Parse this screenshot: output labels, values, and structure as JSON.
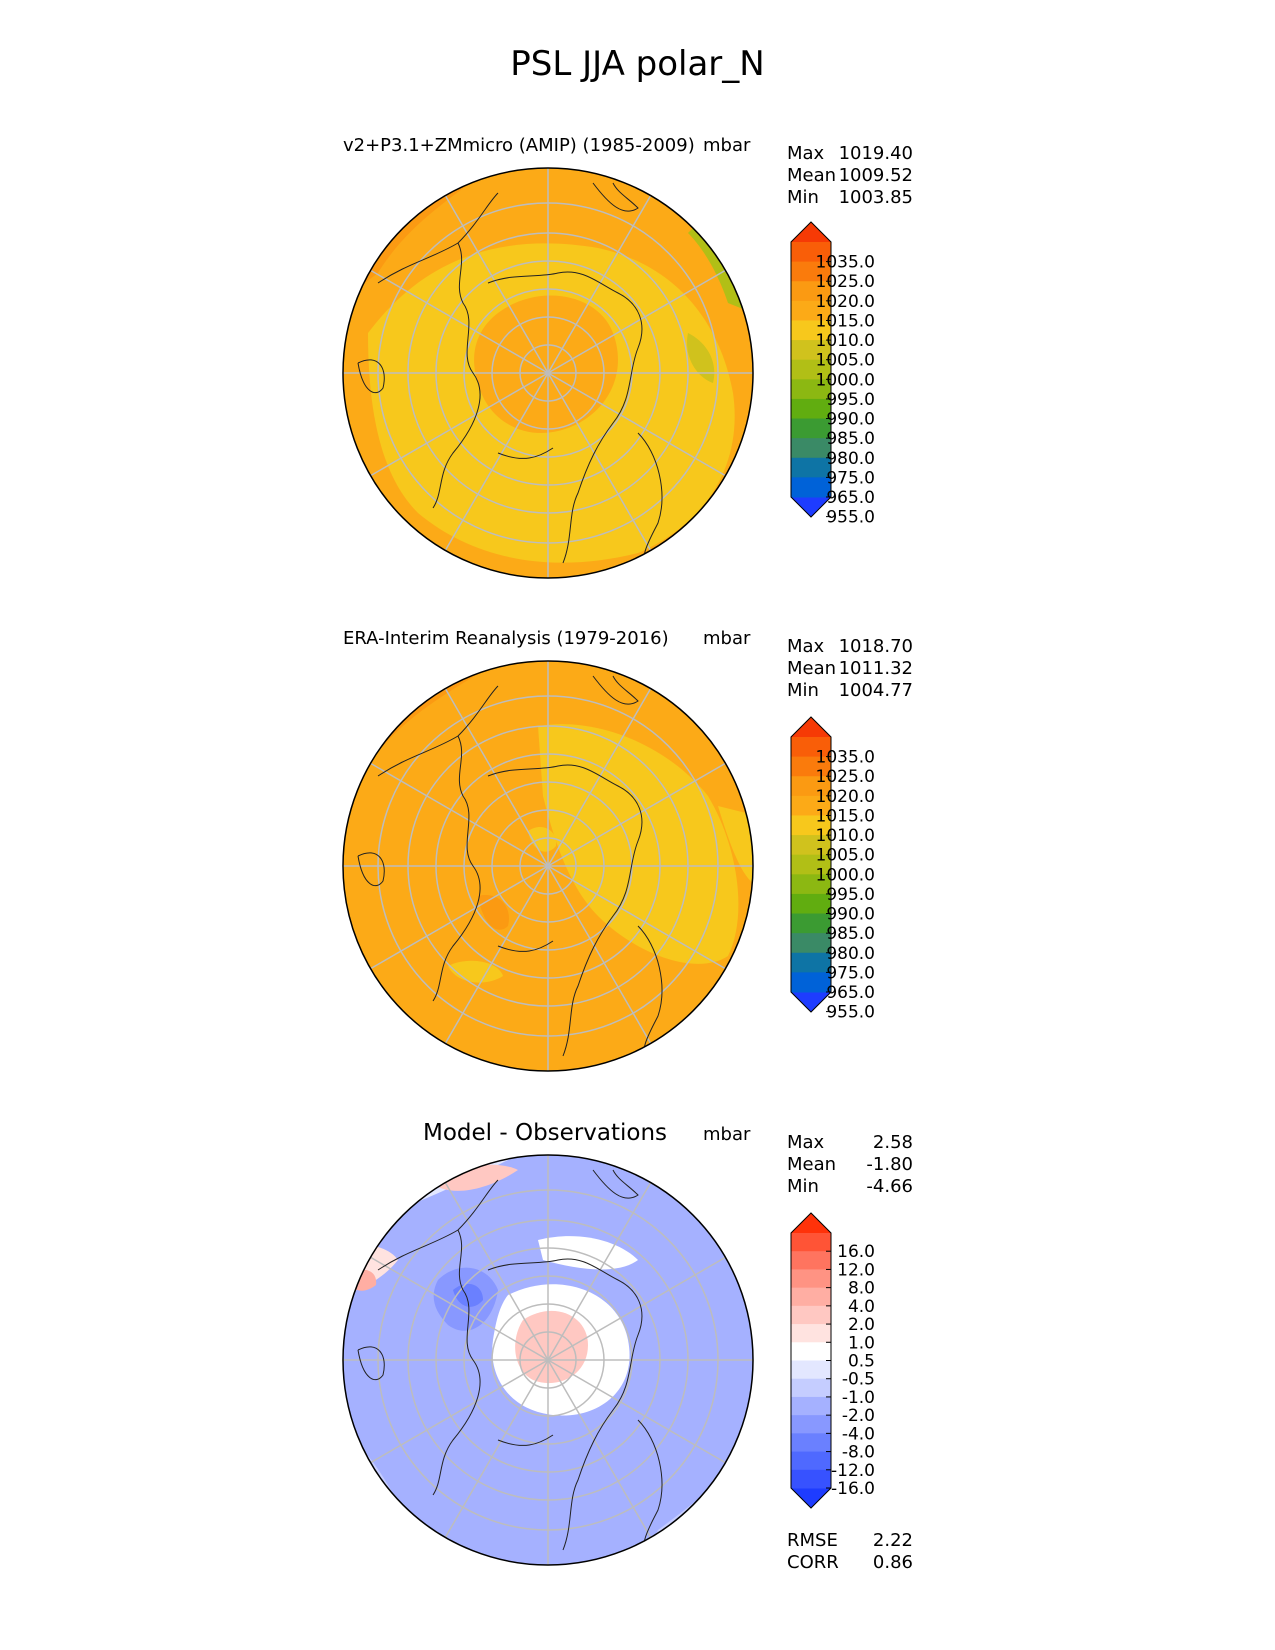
{
  "title": "PSL JJA polar_N",
  "colors": {
    "abs": [
      "#1e3cff",
      "#0062d8",
      "#0e74a5",
      "#3a8a66",
      "#3b9b32",
      "#61ad10",
      "#8cb812",
      "#b1bf16",
      "#d0c21d",
      "#f7c81c",
      "#fcaa17",
      "#fb9a12",
      "#fa7b0c",
      "#f95e08",
      "#f63a05"
    ],
    "diff": [
      "#1e3cff",
      "#3752ff",
      "#4f69ff",
      "#6a80ff",
      "#8898ff",
      "#a5b1ff",
      "#c5cdff",
      "#e3e7ff",
      "#ffffff",
      "#ffe3e0",
      "#ffc8c2",
      "#ffaea3",
      "#ff9383",
      "#ff745f",
      "#ff5436",
      "#ff320a"
    ]
  },
  "panels": [
    {
      "title": "v2+P3.1+ZMmicro (AMIP) (1985-2009)",
      "units": "mbar",
      "stats": [
        {
          "label": "Max",
          "value": "1019.40"
        },
        {
          "label": "Mean",
          "value": "1009.52"
        },
        {
          "label": "Min",
          "value": "1003.85"
        }
      ],
      "colorbar": {
        "ticks": [
          "1035.0",
          "1025.0",
          "1020.0",
          "1015.0",
          "1010.0",
          "1005.0",
          "1000.0",
          "995.0",
          "990.0",
          "985.0",
          "980.0",
          "975.0",
          "965.0",
          "955.0"
        ]
      }
    },
    {
      "title": "ERA-Interim Reanalysis (1979-2016)",
      "units": "mbar",
      "stats": [
        {
          "label": "Max",
          "value": "1018.70"
        },
        {
          "label": "Mean",
          "value": "1011.32"
        },
        {
          "label": "Min",
          "value": "1004.77"
        }
      ],
      "colorbar": {
        "ticks": [
          "1035.0",
          "1025.0",
          "1020.0",
          "1015.0",
          "1010.0",
          "1005.0",
          "1000.0",
          "995.0",
          "990.0",
          "985.0",
          "980.0",
          "975.0",
          "965.0",
          "955.0"
        ]
      }
    },
    {
      "title": "Model - Observations",
      "units": "mbar",
      "stats": [
        {
          "label": "Max",
          "value": "2.58"
        },
        {
          "label": "Mean",
          "value": "-1.80"
        },
        {
          "label": "Min",
          "value": "-4.66"
        }
      ],
      "colorbar": {
        "ticks": [
          "16.0",
          "12.0",
          "8.0",
          "4.0",
          "2.0",
          "1.0",
          "0.5",
          "-0.5",
          "-1.0",
          "-2.0",
          "-4.0",
          "-8.0",
          "-12.0",
          "-16.0"
        ]
      },
      "metrics": [
        {
          "label": "RMSE",
          "value": "2.22"
        },
        {
          "label": "CORR",
          "value": "0.86"
        }
      ]
    }
  ],
  "chart_data": {
    "type": "heatmap",
    "title": "PSL JJA polar_N",
    "projection": "north polar stereographic",
    "units": "mbar",
    "panels": [
      {
        "name": "v2+P3.1+ZMmicro (AMIP) (1985-2009)",
        "max": 1019.4,
        "mean": 1009.52,
        "min": 1003.85,
        "levels": [
          955,
          965,
          975,
          980,
          985,
          990,
          995,
          1000,
          1005,
          1010,
          1015,
          1020,
          1025,
          1035
        ]
      },
      {
        "name": "ERA-Interim Reanalysis (1979-2016)",
        "max": 1018.7,
        "mean": 1011.32,
        "min": 1004.77,
        "levels": [
          955,
          965,
          975,
          980,
          985,
          990,
          995,
          1000,
          1005,
          1010,
          1015,
          1020,
          1025,
          1035
        ]
      },
      {
        "name": "Model - Observations",
        "max": 2.58,
        "mean": -1.8,
        "min": -4.66,
        "rmse": 2.22,
        "corr": 0.86,
        "levels": [
          -16,
          -12,
          -8,
          -4,
          -2,
          -1,
          -0.5,
          0.5,
          1,
          2,
          4,
          8,
          12,
          16
        ]
      }
    ]
  }
}
